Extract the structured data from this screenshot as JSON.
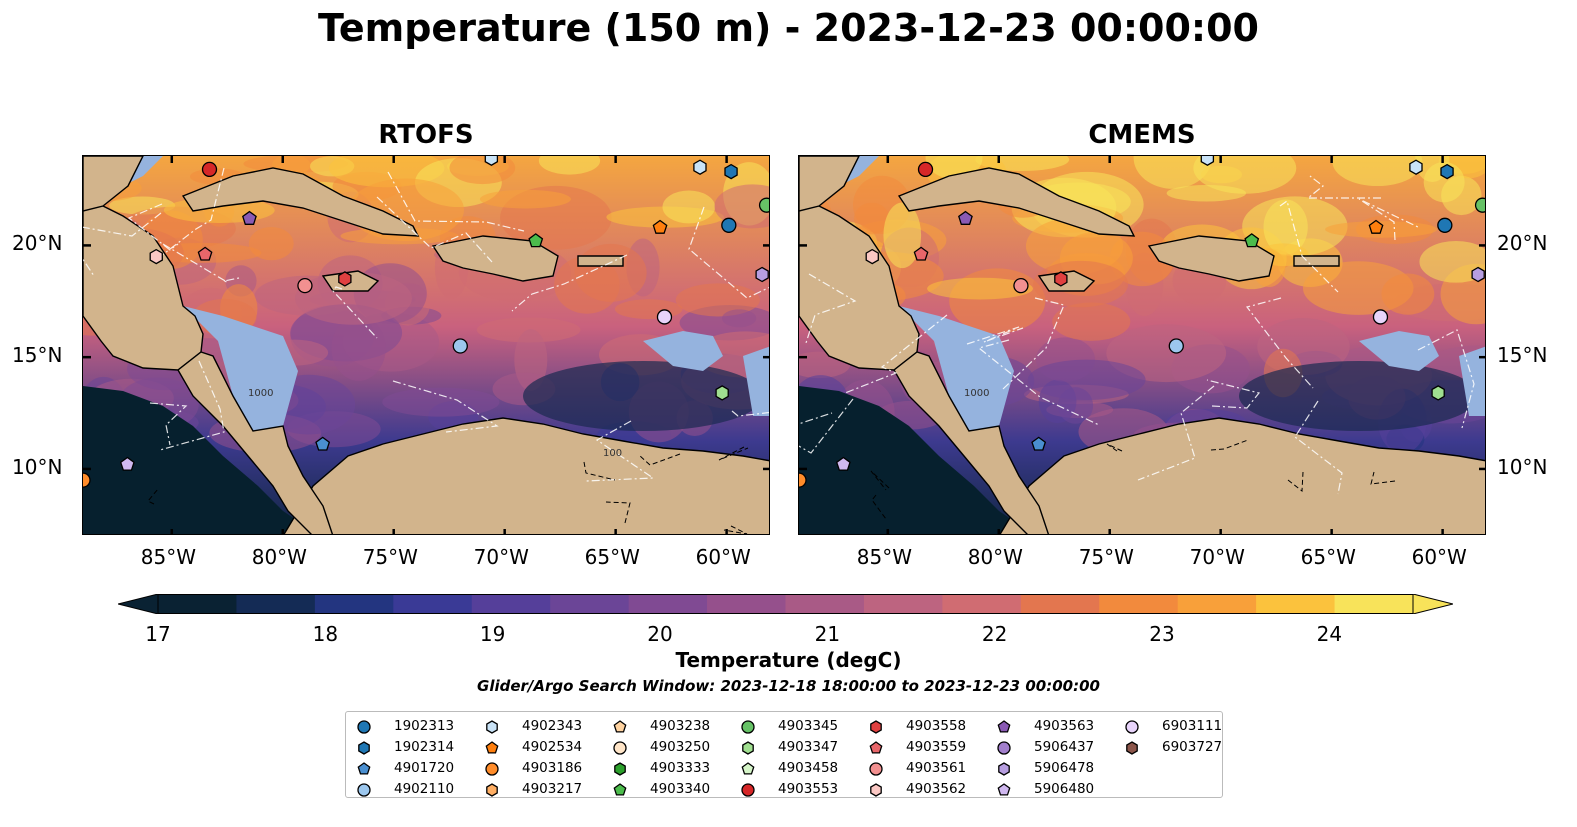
{
  "title": "Temperature (150 m) - 2023-12-23 00:00:00",
  "panels": [
    {
      "title": "RTOFS"
    },
    {
      "title": "CMEMS"
    }
  ],
  "map": {
    "lon_labels": [
      "85°W",
      "80°W",
      "75°W",
      "70°W",
      "65°W",
      "60°W"
    ],
    "lat_labels": [
      "20°N",
      "15°N",
      "10°N"
    ],
    "lon_values": [
      -85,
      -80,
      -75,
      -70,
      -65,
      -60
    ],
    "lat_values": [
      20,
      15,
      10
    ],
    "extent": {
      "lon_min": -89,
      "lon_max": -58,
      "lat_min": 7,
      "lat_max": 24
    },
    "land_color": "#d2b48c",
    "shelf_color": "#95b3de",
    "contour_labels": [
      "1000",
      "100"
    ]
  },
  "colorbar": {
    "label": "Temperature (degC)",
    "ticks": [
      "17",
      "18",
      "19",
      "20",
      "21",
      "22",
      "23",
      "24"
    ],
    "tick_values": [
      17,
      18,
      19,
      20,
      21,
      22,
      23,
      24
    ],
    "range": [
      17,
      24.5
    ],
    "colors": [
      "#0a2233",
      "#142b55",
      "#233580",
      "#3a3a96",
      "#553f9a",
      "#6b4597",
      "#804a93",
      "#95508c",
      "#a95a86",
      "#bd6480",
      "#d06c72",
      "#e3764f",
      "#f28a3d",
      "#f8a03a",
      "#fbc23d",
      "#f8e35a"
    ]
  },
  "search_window": "Glider/Argo Search Window: 2023-12-18 18:00:00 to 2023-12-23 00:00:00",
  "legend": [
    {
      "id": "1902313",
      "marker": "circle",
      "color": "#1f77b4"
    },
    {
      "id": "1902314",
      "marker": "hexagon",
      "color": "#1f77b4"
    },
    {
      "id": "4901720",
      "marker": "pentagon",
      "color": "#4a8fd0"
    },
    {
      "id": "4902110",
      "marker": "circle",
      "color": "#9cc7ee"
    },
    {
      "id": "4902343",
      "marker": "hexagon",
      "color": "#c9e3f7"
    },
    {
      "id": "4902534",
      "marker": "pentagon",
      "color": "#ff7f0e"
    },
    {
      "id": "4903186",
      "marker": "circle",
      "color": "#ff8c2a"
    },
    {
      "id": "4903217",
      "marker": "hexagon",
      "color": "#ffae63"
    },
    {
      "id": "4903238",
      "marker": "pentagon",
      "color": "#ffd3a0"
    },
    {
      "id": "4903250",
      "marker": "circle",
      "color": "#ffe5c8"
    },
    {
      "id": "4903333",
      "marker": "hexagon",
      "color": "#2ca02c"
    },
    {
      "id": "4903340",
      "marker": "pentagon",
      "color": "#4cbc4c"
    },
    {
      "id": "4903345",
      "marker": "circle",
      "color": "#66c266"
    },
    {
      "id": "4903347",
      "marker": "hexagon",
      "color": "#a0df90"
    },
    {
      "id": "4903458",
      "marker": "pentagon",
      "color": "#d5f5c8"
    },
    {
      "id": "4903553",
      "marker": "circle",
      "color": "#d62728"
    },
    {
      "id": "4903558",
      "marker": "hexagon",
      "color": "#e04040"
    },
    {
      "id": "4903559",
      "marker": "pentagon",
      "color": "#e8666a"
    },
    {
      "id": "4903561",
      "marker": "circle",
      "color": "#f29090"
    },
    {
      "id": "4903562",
      "marker": "hexagon",
      "color": "#fbc8c4"
    },
    {
      "id": "4903563",
      "marker": "pentagon",
      "color": "#8a5ab4"
    },
    {
      "id": "5906437",
      "marker": "circle",
      "color": "#a27fcc"
    },
    {
      "id": "5906478",
      "marker": "hexagon",
      "color": "#b79ee0"
    },
    {
      "id": "5906480",
      "marker": "pentagon",
      "color": "#d0b8f0"
    },
    {
      "id": "6903111",
      "marker": "circle",
      "color": "#e8d4fb"
    },
    {
      "id": "6903727",
      "marker": "hexagon",
      "color": "#8c564b"
    }
  ],
  "floats": [
    {
      "id": "1902313",
      "lon": -59.9,
      "lat": 20.9
    },
    {
      "id": "1902314",
      "lon": -59.8,
      "lat": 23.3
    },
    {
      "id": "4901720",
      "lon": -78.2,
      "lat": 11.1
    },
    {
      "id": "4902110",
      "lon": -72.0,
      "lat": 15.5
    },
    {
      "id": "4902343",
      "lon": -61.2,
      "lat": 23.5
    },
    {
      "id": "4902343",
      "lon": -70.6,
      "lat": 23.9
    },
    {
      "id": "4902534",
      "lon": -63.0,
      "lat": 20.8
    },
    {
      "id": "4903186",
      "lon": -89.0,
      "lat": 9.5
    },
    {
      "id": "4903340",
      "lon": -68.6,
      "lat": 20.2
    },
    {
      "id": "4903345",
      "lon": -58.2,
      "lat": 21.8
    },
    {
      "id": "4903347",
      "lon": -60.2,
      "lat": 13.4
    },
    {
      "id": "4903553",
      "lon": -83.3,
      "lat": 23.4
    },
    {
      "id": "4903558",
      "lon": -77.2,
      "lat": 18.5
    },
    {
      "id": "4903559",
      "lon": -83.5,
      "lat": 19.6
    },
    {
      "id": "4903561",
      "lon": -79.0,
      "lat": 18.2
    },
    {
      "id": "4903562",
      "lon": -85.7,
      "lat": 19.5
    },
    {
      "id": "4903563",
      "lon": -81.5,
      "lat": 21.2
    },
    {
      "id": "5906480",
      "lon": -87.0,
      "lat": 10.2
    },
    {
      "id": "6903111",
      "lon": -62.8,
      "lat": 16.8
    },
    {
      "id": "5906478",
      "lon": -58.4,
      "lat": 18.7
    }
  ]
}
